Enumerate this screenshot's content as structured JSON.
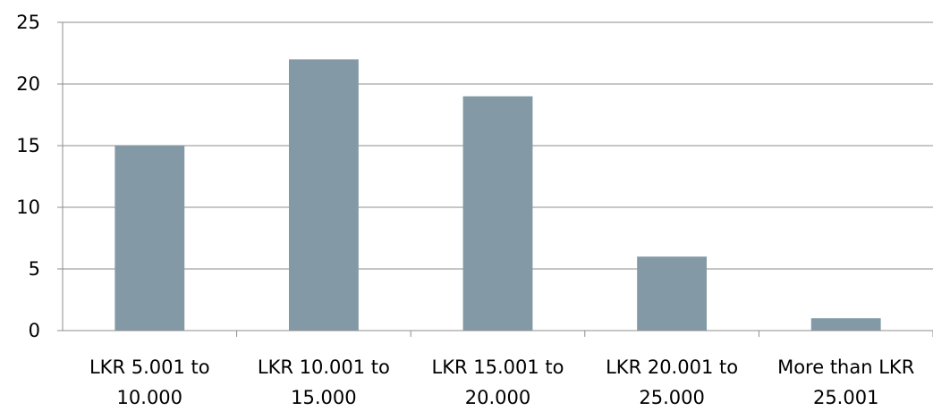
{
  "chart_data": {
    "type": "bar",
    "title": "",
    "xlabel": "",
    "ylabel": "",
    "categories": [
      [
        "LKR 5.001 to",
        "10.000"
      ],
      [
        "LKR 10.001 to",
        "15.000"
      ],
      [
        "LKR 15.001 to",
        "20.000"
      ],
      [
        "LKR 20.001 to",
        "25.000"
      ],
      [
        "More than LKR",
        "25.001"
      ]
    ],
    "values": [
      15,
      22,
      19,
      6,
      1
    ],
    "ylim": [
      0,
      25
    ],
    "yticks": [
      "0",
      "5",
      "10",
      "15",
      "20",
      "25"
    ],
    "grid": true,
    "legend": "none",
    "colors": {
      "bar": "#8399A6",
      "grid": "#8C8C8C",
      "axis": "#8C8C8C",
      "text": "#000000"
    }
  }
}
